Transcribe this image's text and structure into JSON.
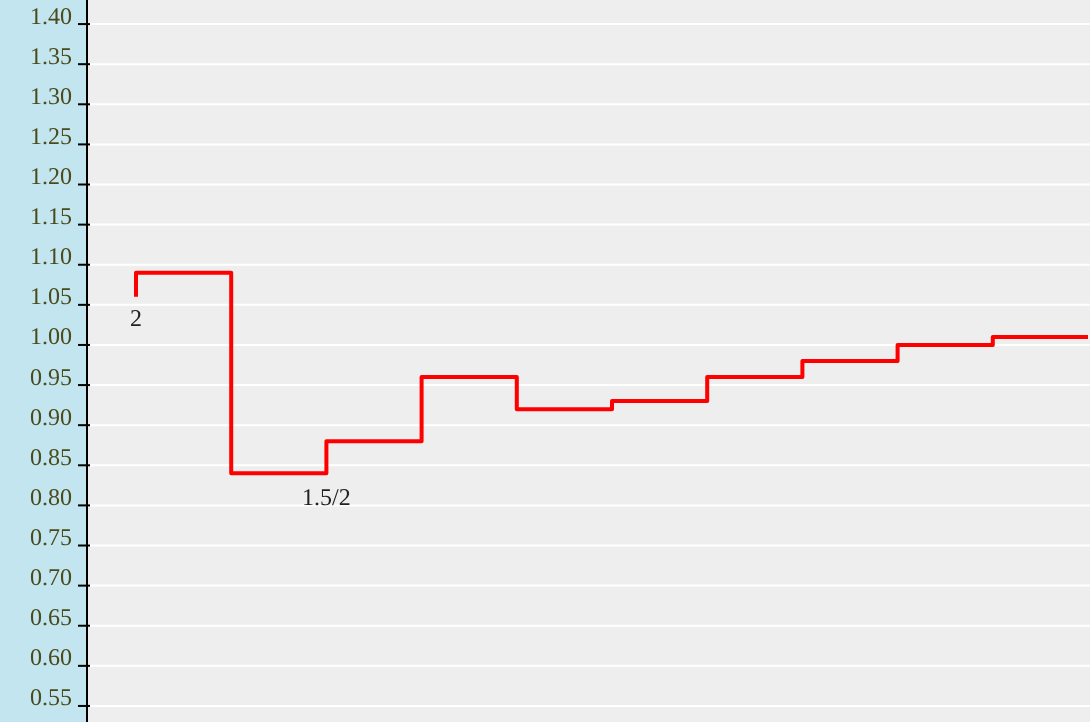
{
  "chart_data": {
    "type": "step",
    "categories": [
      null,
      null,
      null,
      null,
      null,
      null,
      null,
      null,
      null,
      null,
      null
    ],
    "series": [
      {
        "color": "#ff0000",
        "values": [
          1.06,
          1.09,
          0.84,
          0.88,
          0.96,
          0.92,
          0.93,
          0.96,
          0.98,
          1.0,
          1.01
        ]
      }
    ],
    "ylim": [
      0.53,
      1.43
    ],
    "yticks": [
      {
        "value": 0.55,
        "label": "0.55"
      },
      {
        "value": 0.6,
        "label": "0.60"
      },
      {
        "value": 0.65,
        "label": "0.65"
      },
      {
        "value": 0.7,
        "label": "0.70"
      },
      {
        "value": 0.75,
        "label": "0.75"
      },
      {
        "value": 0.8,
        "label": "0.80"
      },
      {
        "value": 0.85,
        "label": "0.85"
      },
      {
        "value": 0.9,
        "label": "0.90"
      },
      {
        "value": 0.95,
        "label": "0.95"
      },
      {
        "value": 1.0,
        "label": "1.00"
      },
      {
        "value": 1.05,
        "label": "1.05"
      },
      {
        "value": 1.1,
        "label": "1.10"
      },
      {
        "value": 1.15,
        "label": "1.15"
      },
      {
        "value": 1.2,
        "label": "1.20"
      },
      {
        "value": 1.25,
        "label": "1.25"
      },
      {
        "value": 1.3,
        "label": "1.30"
      },
      {
        "value": 1.35,
        "label": "1.35"
      },
      {
        "value": 1.4,
        "label": "1.40"
      }
    ],
    "grid": "y",
    "tick_labels": "y",
    "annotations": [
      {
        "text": "2",
        "y": 1.06
      },
      {
        "text": "1.5/2",
        "y": 0.84
      }
    ]
  }
}
